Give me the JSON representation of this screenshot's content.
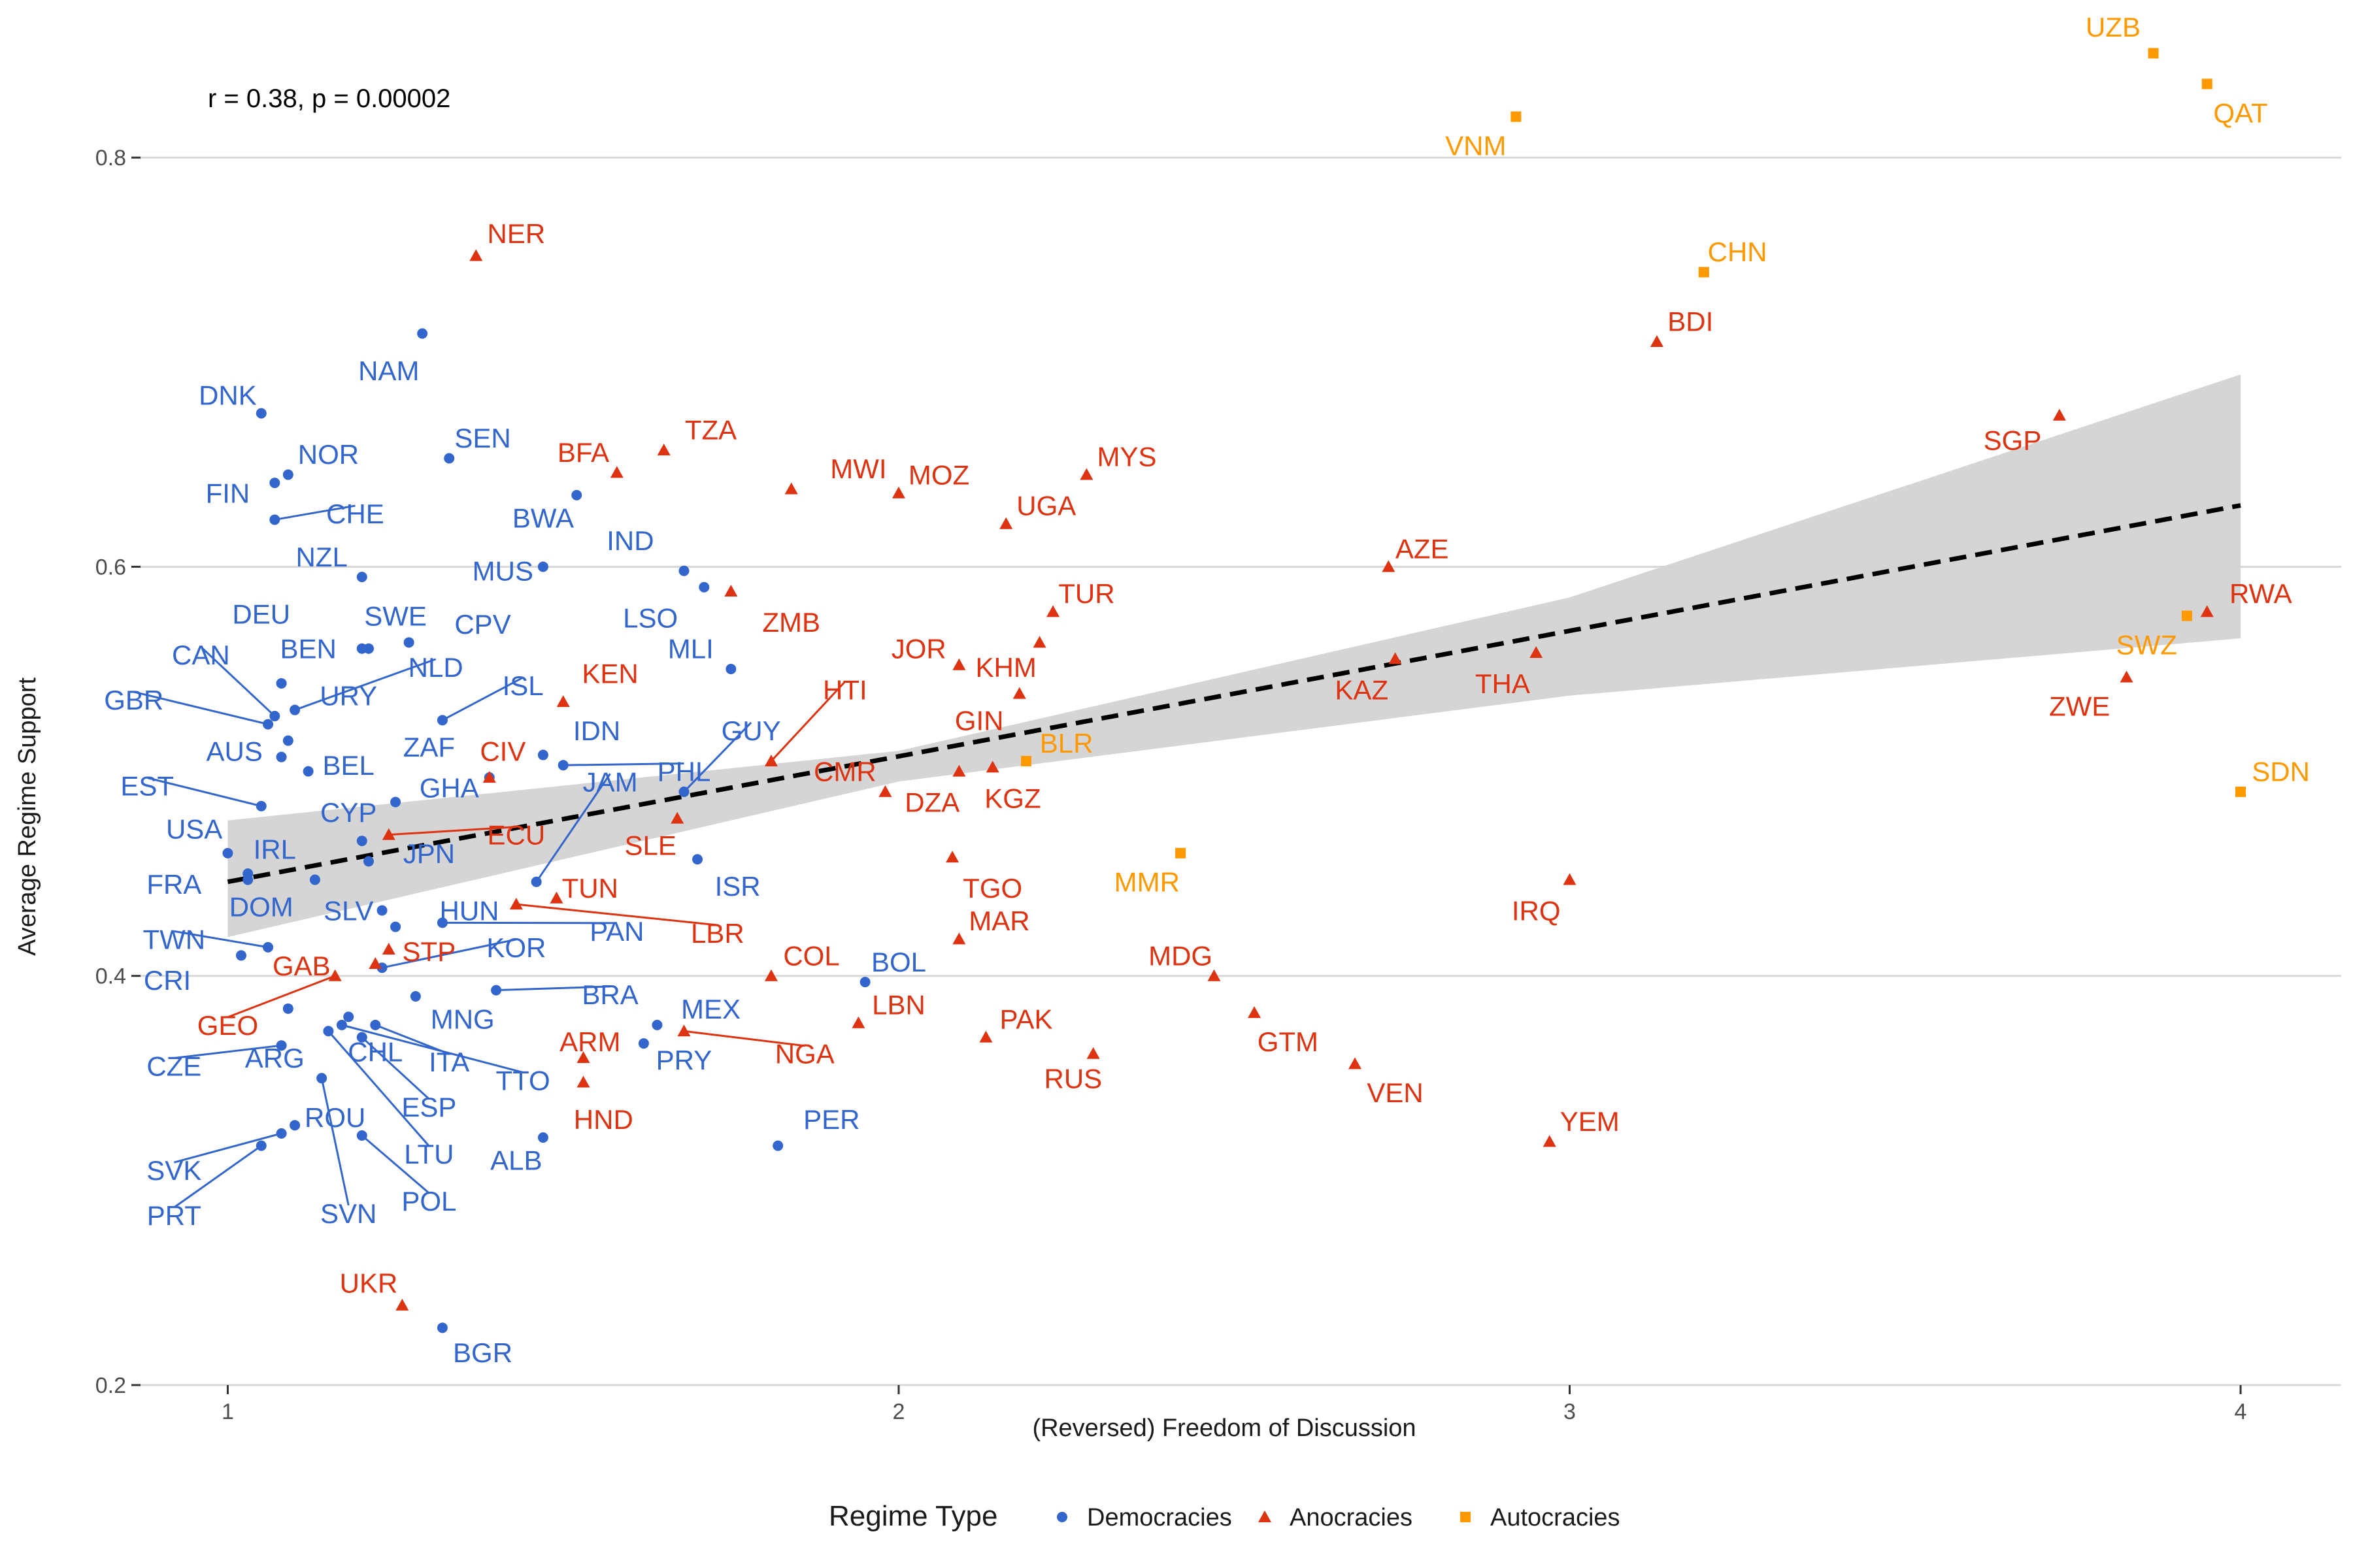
{
  "chart_data": {
    "type": "scatter",
    "xlabel": "(Reversed) Freedom of Discussion",
    "ylabel": "Average Regime Support",
    "xlim": [
      0.87,
      4.15
    ],
    "ylim": [
      0.2,
      0.87
    ],
    "xticks": [
      1,
      2,
      3,
      4
    ],
    "yticks": [
      0.2,
      0.4,
      0.6,
      0.8
    ],
    "ytick_labels": [
      "0.2",
      "0.4",
      "0.6",
      "0.8"
    ],
    "grid": "horizontal major lines only",
    "annotation": "r = 0.38, p = 0.00002",
    "legend": {
      "title": "Regime Type",
      "placement": "bottom",
      "entries": [
        {
          "name": "Democracies",
          "shape": "circle",
          "color": "#3366CC"
        },
        {
          "name": "Anocracies",
          "shape": "triangle",
          "color": "#DD3311"
        },
        {
          "name": "Autocracies",
          "shape": "square",
          "color": "#FF9900"
        }
      ]
    },
    "trend": {
      "style": "dashed linear fit with confidence band",
      "line": [
        [
          1,
          0.446
        ],
        [
          4,
          0.63
        ]
      ],
      "band_upper": [
        [
          1,
          0.476
        ],
        [
          2,
          0.51
        ],
        [
          3,
          0.585
        ],
        [
          4,
          0.694
        ]
      ],
      "band_lower": [
        [
          1,
          0.419
        ],
        [
          2,
          0.495
        ],
        [
          3,
          0.537
        ],
        [
          4,
          0.565
        ]
      ],
      "band_color": "#D3D3D3"
    },
    "series": [
      {
        "name": "Democracies",
        "color": "#3366CC",
        "points": [
          {
            "label": "NAM",
            "x": 1.29,
            "y": 0.714,
            "lx": 1.24,
            "ly": 0.696
          },
          {
            "label": "DNK",
            "x": 1.05,
            "y": 0.675,
            "lx": 1.0,
            "ly": 0.684
          },
          {
            "label": "NOR",
            "x": 1.09,
            "y": 0.645,
            "lx": 1.15,
            "ly": 0.655
          },
          {
            "label": "FIN",
            "x": 1.07,
            "y": 0.641,
            "lx": 1.0,
            "ly": 0.636
          },
          {
            "label": "CHE",
            "x": 1.07,
            "y": 0.623,
            "lx": 1.19,
            "ly": 0.626
          },
          {
            "label": "SEN",
            "x": 1.33,
            "y": 0.653,
            "lx": 1.38,
            "ly": 0.663
          },
          {
            "label": "BWA",
            "x": 1.52,
            "y": 0.635,
            "lx": 1.47,
            "ly": 0.624
          },
          {
            "label": "NZL",
            "x": 1.2,
            "y": 0.595,
            "lx": 1.14,
            "ly": 0.605
          },
          {
            "label": "MUS",
            "x": 1.47,
            "y": 0.6,
            "lx": 1.41,
            "ly": 0.598
          },
          {
            "label": "IND",
            "x": 1.68,
            "y": 0.598,
            "lx": 1.6,
            "ly": 0.613
          },
          {
            "label": "SWE",
            "x": 1.2,
            "y": 0.56,
            "lx": 1.25,
            "ly": 0.576
          },
          {
            "label": "DEU",
            "x": 1.08,
            "y": 0.543,
            "lx": 1.05,
            "ly": 0.577
          },
          {
            "label": "LSO",
            "x": 1.71,
            "y": 0.59,
            "lx": 1.63,
            "ly": 0.575
          },
          {
            "label": "CPV",
            "x": 1.27,
            "y": 0.563,
            "lx": 1.38,
            "ly": 0.572
          },
          {
            "label": "BEN",
            "x": 1.21,
            "y": 0.56,
            "lx": 1.12,
            "ly": 0.56
          },
          {
            "label": "MLI",
            "x": 1.75,
            "y": 0.55,
            "lx": 1.69,
            "ly": 0.56
          },
          {
            "label": "CAN",
            "x": 1.07,
            "y": 0.527,
            "lx": 0.96,
            "ly": 0.557
          },
          {
            "label": "NLD",
            "x": 1.1,
            "y": 0.53,
            "lx": 1.31,
            "ly": 0.551
          },
          {
            "label": "URY",
            "x": 1.09,
            "y": 0.515,
            "lx": 1.18,
            "ly": 0.537
          },
          {
            "label": "ISL",
            "x": 1.32,
            "y": 0.525,
            "lx": 1.44,
            "ly": 0.542
          },
          {
            "label": "GBR",
            "x": 1.06,
            "y": 0.523,
            "lx": 0.86,
            "ly": 0.535
          },
          {
            "label": "AUS",
            "x": 1.08,
            "y": 0.507,
            "lx": 1.01,
            "ly": 0.51
          },
          {
            "label": "ZAF",
            "x": 1.39,
            "y": 0.497,
            "lx": 1.3,
            "ly": 0.512
          },
          {
            "label": "IDN",
            "x": 1.47,
            "y": 0.508,
            "lx": 1.55,
            "ly": 0.52
          },
          {
            "label": "BEL",
            "x": 1.12,
            "y": 0.5,
            "lx": 1.18,
            "ly": 0.503
          },
          {
            "label": "GUY",
            "x": 1.68,
            "y": 0.49,
            "lx": 1.78,
            "ly": 0.52
          },
          {
            "label": "PHL",
            "x": 1.5,
            "y": 0.503,
            "lx": 1.68,
            "ly": 0.5
          },
          {
            "label": "EST",
            "x": 1.05,
            "y": 0.483,
            "lx": 0.88,
            "ly": 0.493
          },
          {
            "label": "GHA",
            "x": 1.25,
            "y": 0.485,
            "lx": 1.33,
            "ly": 0.492
          },
          {
            "label": "CYP",
            "x": 1.2,
            "y": 0.466,
            "lx": 1.18,
            "ly": 0.48
          },
          {
            "label": "JAM",
            "x": 1.46,
            "y": 0.446,
            "lx": 1.57,
            "ly": 0.495
          },
          {
            "label": "USA",
            "x": 1.0,
            "y": 0.46,
            "lx": 0.95,
            "ly": 0.472
          },
          {
            "label": "IRL",
            "x": 1.03,
            "y": 0.45,
            "lx": 1.07,
            "ly": 0.462
          },
          {
            "label": "JPN",
            "x": 1.21,
            "y": 0.456,
            "lx": 1.3,
            "ly": 0.46
          },
          {
            "label": "ISR",
            "x": 1.7,
            "y": 0.457,
            "lx": 1.76,
            "ly": 0.444
          },
          {
            "label": "FRA",
            "x": 1.03,
            "y": 0.447,
            "lx": 0.92,
            "ly": 0.445
          },
          {
            "label": "DOM",
            "x": 1.13,
            "y": 0.447,
            "lx": 1.05,
            "ly": 0.434
          },
          {
            "label": "SLV",
            "x": 1.23,
            "y": 0.432,
            "lx": 1.18,
            "ly": 0.432
          },
          {
            "label": "HUN",
            "x": 1.25,
            "y": 0.424,
            "lx": 1.36,
            "ly": 0.432
          },
          {
            "label": "PAN",
            "x": 1.32,
            "y": 0.426,
            "lx": 1.58,
            "ly": 0.422
          },
          {
            "label": "TWN",
            "x": 1.06,
            "y": 0.414,
            "lx": 0.92,
            "ly": 0.418
          },
          {
            "label": "KOR",
            "x": 1.23,
            "y": 0.404,
            "lx": 1.43,
            "ly": 0.414
          },
          {
            "label": "CRI",
            "x": 1.02,
            "y": 0.41,
            "lx": 0.91,
            "ly": 0.398
          },
          {
            "label": "BOL",
            "x": 1.95,
            "y": 0.397,
            "lx": 2.0,
            "ly": 0.407
          },
          {
            "label": "BRA",
            "x": 1.4,
            "y": 0.393,
            "lx": 1.57,
            "ly": 0.391
          },
          {
            "label": "MNG",
            "x": 1.28,
            "y": 0.39,
            "lx": 1.35,
            "ly": 0.379
          },
          {
            "label": "MEX",
            "x": 1.64,
            "y": 0.376,
            "lx": 1.72,
            "ly": 0.384
          },
          {
            "label": "CZE",
            "x": 1.08,
            "y": 0.366,
            "lx": 0.92,
            "ly": 0.356
          },
          {
            "label": "ARG",
            "x": 1.09,
            "y": 0.384,
            "lx": 1.07,
            "ly": 0.36
          },
          {
            "label": "CHL",
            "x": 1.18,
            "y": 0.38,
            "lx": 1.22,
            "ly": 0.363
          },
          {
            "label": "ITA",
            "x": 1.22,
            "y": 0.376,
            "lx": 1.33,
            "ly": 0.358
          },
          {
            "label": "PRY",
            "x": 1.62,
            "y": 0.367,
            "lx": 1.68,
            "ly": 0.359
          },
          {
            "label": "TTO",
            "x": 1.17,
            "y": 0.376,
            "lx": 1.44,
            "ly": 0.349
          },
          {
            "label": "ESP",
            "x": 1.2,
            "y": 0.37,
            "lx": 1.3,
            "ly": 0.336
          },
          {
            "label": "ROU",
            "x": 1.1,
            "y": 0.327,
            "lx": 1.16,
            "ly": 0.331
          },
          {
            "label": "PER",
            "x": 1.82,
            "y": 0.317,
            "lx": 1.9,
            "ly": 0.33
          },
          {
            "label": "LTU",
            "x": 1.15,
            "y": 0.373,
            "lx": 1.3,
            "ly": 0.313
          },
          {
            "label": "ALB",
            "x": 1.47,
            "y": 0.321,
            "lx": 1.43,
            "ly": 0.31
          },
          {
            "label": "SVK",
            "x": 1.08,
            "y": 0.323,
            "lx": 0.92,
            "ly": 0.305
          },
          {
            "label": "POL",
            "x": 1.2,
            "y": 0.322,
            "lx": 1.3,
            "ly": 0.29
          },
          {
            "label": "SVN",
            "x": 1.14,
            "y": 0.35,
            "lx": 1.18,
            "ly": 0.284
          },
          {
            "label": "PRT",
            "x": 1.05,
            "y": 0.317,
            "lx": 0.92,
            "ly": 0.283
          },
          {
            "label": "BGR",
            "x": 1.32,
            "y": 0.228,
            "lx": 1.38,
            "ly": 0.216
          }
        ]
      },
      {
        "name": "Anocracies",
        "color": "#DD3311",
        "points": [
          {
            "label": "NER",
            "x": 1.37,
            "y": 0.752,
            "lx": 1.43,
            "ly": 0.763
          },
          {
            "label": "BDI",
            "x": 3.13,
            "y": 0.71,
            "lx": 3.18,
            "ly": 0.72
          },
          {
            "label": "SGP",
            "x": 3.73,
            "y": 0.674,
            "lx": 3.66,
            "ly": 0.662
          },
          {
            "label": "TZA",
            "x": 1.65,
            "y": 0.657,
            "lx": 1.72,
            "ly": 0.667
          },
          {
            "label": "BFA",
            "x": 1.58,
            "y": 0.646,
            "lx": 1.53,
            "ly": 0.656
          },
          {
            "label": "MWI",
            "x": 1.84,
            "y": 0.638,
            "lx": 1.94,
            "ly": 0.648
          },
          {
            "label": "MOZ",
            "x": 2.0,
            "y": 0.636,
            "lx": 2.06,
            "ly": 0.645
          },
          {
            "label": "MYS",
            "x": 2.28,
            "y": 0.645,
            "lx": 2.34,
            "ly": 0.654
          },
          {
            "label": "UGA",
            "x": 2.16,
            "y": 0.621,
            "lx": 2.22,
            "ly": 0.63
          },
          {
            "label": "AZE",
            "x": 2.73,
            "y": 0.6,
            "lx": 2.78,
            "ly": 0.609
          },
          {
            "label": "TUR",
            "x": 2.23,
            "y": 0.578,
            "lx": 2.28,
            "ly": 0.587
          },
          {
            "label": "ZMB",
            "x": 1.75,
            "y": 0.588,
            "lx": 1.84,
            "ly": 0.573
          },
          {
            "label": "RWA",
            "x": 3.95,
            "y": 0.578,
            "lx": 4.03,
            "ly": 0.587
          },
          {
            "label": "JOR",
            "x": 2.09,
            "y": 0.552,
            "lx": 2.03,
            "ly": 0.56
          },
          {
            "label": "KHM",
            "x": 2.21,
            "y": 0.563,
            "lx": 2.16,
            "ly": 0.551
          },
          {
            "label": "KEN",
            "x": 1.5,
            "y": 0.534,
            "lx": 1.57,
            "ly": 0.548
          },
          {
            "label": "HTI",
            "x": 1.81,
            "y": 0.505,
            "lx": 1.92,
            "ly": 0.54
          },
          {
            "label": "ZWE",
            "x": 3.83,
            "y": 0.546,
            "lx": 3.76,
            "ly": 0.532
          },
          {
            "label": "KAZ",
            "x": 2.74,
            "y": 0.555,
            "lx": 2.69,
            "ly": 0.54
          },
          {
            "label": "THA",
            "x": 2.95,
            "y": 0.558,
            "lx": 2.9,
            "ly": 0.543
          },
          {
            "label": "GIN",
            "x": 2.18,
            "y": 0.538,
            "lx": 2.12,
            "ly": 0.525
          },
          {
            "label": "CIV",
            "x": 1.39,
            "y": 0.497,
            "lx": 1.41,
            "ly": 0.51
          },
          {
            "label": "CMR",
            "x": 1.98,
            "y": 0.49,
            "lx": 1.92,
            "ly": 0.5
          },
          {
            "label": "DZA",
            "x": 2.09,
            "y": 0.5,
            "lx": 2.05,
            "ly": 0.485
          },
          {
            "label": "KGZ",
            "x": 2.14,
            "y": 0.502,
            "lx": 2.17,
            "ly": 0.487
          },
          {
            "label": "ECU",
            "x": 1.24,
            "y": 0.469,
            "lx": 1.43,
            "ly": 0.469
          },
          {
            "label": "SLE",
            "x": 1.67,
            "y": 0.477,
            "lx": 1.63,
            "ly": 0.464
          },
          {
            "label": "TGO",
            "x": 2.08,
            "y": 0.458,
            "lx": 2.14,
            "ly": 0.443
          },
          {
            "label": "IRQ",
            "x": 3.0,
            "y": 0.447,
            "lx": 2.95,
            "ly": 0.432
          },
          {
            "label": "TUN",
            "x": 1.49,
            "y": 0.438,
            "lx": 1.54,
            "ly": 0.443
          },
          {
            "label": "LBR",
            "x": 1.43,
            "y": 0.435,
            "lx": 1.73,
            "ly": 0.421
          },
          {
            "label": "MAR",
            "x": 2.09,
            "y": 0.418,
            "lx": 2.15,
            "ly": 0.427
          },
          {
            "label": "STP",
            "x": 1.24,
            "y": 0.413,
            "lx": 1.3,
            "ly": 0.412
          },
          {
            "label": "COL",
            "x": 1.81,
            "y": 0.4,
            "lx": 1.87,
            "ly": 0.41
          },
          {
            "label": "GAB",
            "x": 1.22,
            "y": 0.406,
            "lx": 1.11,
            "ly": 0.405
          },
          {
            "label": "MDG",
            "x": 2.47,
            "y": 0.4,
            "lx": 2.42,
            "ly": 0.41
          },
          {
            "label": "GEO",
            "x": 1.16,
            "y": 0.4,
            "lx": 1.0,
            "ly": 0.376
          },
          {
            "label": "LBN",
            "x": 1.94,
            "y": 0.377,
            "lx": 2.0,
            "ly": 0.386
          },
          {
            "label": "PAK",
            "x": 2.13,
            "y": 0.37,
            "lx": 2.19,
            "ly": 0.379
          },
          {
            "label": "GTM",
            "x": 2.53,
            "y": 0.382,
            "lx": 2.58,
            "ly": 0.368
          },
          {
            "label": "ARM",
            "x": 1.53,
            "y": 0.36,
            "lx": 1.54,
            "ly": 0.368
          },
          {
            "label": "NGA",
            "x": 1.68,
            "y": 0.373,
            "lx": 1.86,
            "ly": 0.362
          },
          {
            "label": "RUS",
            "x": 2.29,
            "y": 0.362,
            "lx": 2.26,
            "ly": 0.35
          },
          {
            "label": "VEN",
            "x": 2.68,
            "y": 0.357,
            "lx": 2.74,
            "ly": 0.343
          },
          {
            "label": "HND",
            "x": 1.53,
            "y": 0.348,
            "lx": 1.56,
            "ly": 0.33
          },
          {
            "label": "YEM",
            "x": 2.97,
            "y": 0.319,
            "lx": 3.03,
            "ly": 0.329
          },
          {
            "label": "UKR",
            "x": 1.26,
            "y": 0.239,
            "lx": 1.21,
            "ly": 0.25
          }
        ]
      },
      {
        "name": "Autocracies",
        "color": "#FF9900",
        "points": [
          {
            "label": "UZB",
            "x": 3.87,
            "y": 0.851,
            "lx": 3.81,
            "ly": 0.864
          },
          {
            "label": "QAT",
            "x": 3.95,
            "y": 0.836,
            "lx": 4.0,
            "ly": 0.822
          },
          {
            "label": "VNM",
            "x": 2.92,
            "y": 0.82,
            "lx": 2.86,
            "ly": 0.806
          },
          {
            "label": "CHN",
            "x": 3.2,
            "y": 0.744,
            "lx": 3.25,
            "ly": 0.754
          },
          {
            "label": "SWZ",
            "x": 3.92,
            "y": 0.576,
            "lx": 3.86,
            "ly": 0.562
          },
          {
            "label": "BLR",
            "x": 2.19,
            "y": 0.505,
            "lx": 2.25,
            "ly": 0.514
          },
          {
            "label": "SDN",
            "x": 4.0,
            "y": 0.49,
            "lx": 4.06,
            "ly": 0.5
          },
          {
            "label": "MMR",
            "x": 2.42,
            "y": 0.46,
            "lx": 2.37,
            "ly": 0.446
          }
        ]
      }
    ]
  }
}
